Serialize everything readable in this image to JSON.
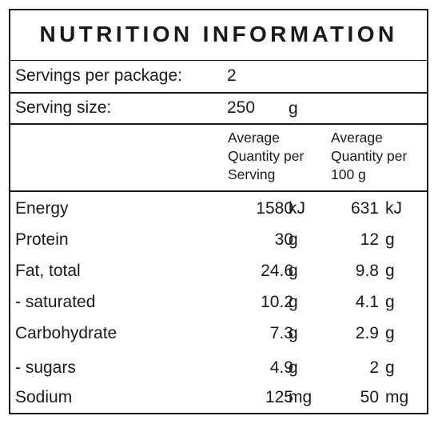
{
  "title": "NUTRITION INFORMATION",
  "servings": {
    "label": "Servings per package:",
    "value": "2"
  },
  "serving_size": {
    "label": "Serving size:",
    "value": "250",
    "unit": "g"
  },
  "headers": {
    "per_serving": [
      "Average",
      "Quantity per",
      "Serving"
    ],
    "per_100g": [
      "Average",
      "Quantity per",
      "100 g"
    ]
  },
  "rows": [
    {
      "name": "Energy",
      "per_serving": "1580",
      "unit_serving": "kJ",
      "per_100g": "631",
      "unit_100g": "kJ"
    },
    {
      "name": "Protein",
      "per_serving": "30",
      "unit_serving": "g",
      "per_100g": "12",
      "unit_100g": "g"
    },
    {
      "name": "Fat, total",
      "per_serving": "24.6",
      "unit_serving": "g",
      "per_100g": "9.8",
      "unit_100g": "g"
    },
    {
      "name": "- saturated",
      "per_serving": "10.2",
      "unit_serving": "g",
      "per_100g": "4.1",
      "unit_100g": "g"
    },
    {
      "name": "Carbohydrate",
      "per_serving": "7.3",
      "unit_serving": "g",
      "per_100g": "2.9",
      "unit_100g": "g"
    },
    {
      "name": "- sugars",
      "per_serving": "4.9",
      "unit_serving": "g",
      "per_100g": "2",
      "unit_100g": "g"
    },
    {
      "name": "Sodium",
      "per_serving": "125",
      "unit_serving": "mg",
      "per_100g": "50",
      "unit_100g": "mg"
    }
  ]
}
